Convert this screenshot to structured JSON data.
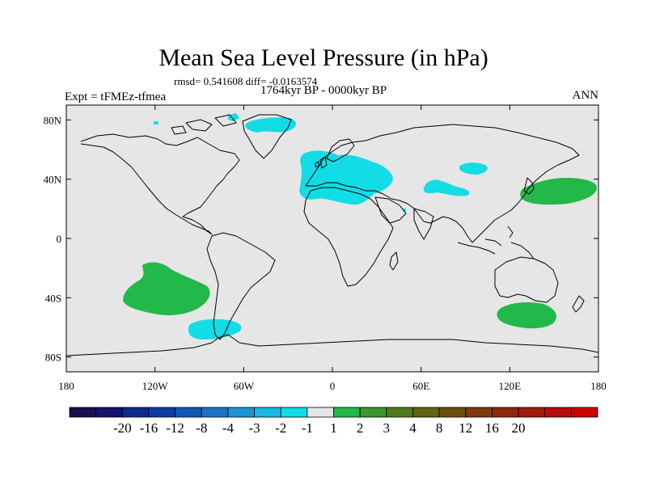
{
  "header": {
    "title": "Mean Sea Level Pressure (in hPa)",
    "stats": "rmsd= 0.541608 diff= -0.0163574",
    "period": "1764kyr BP - 0000kyr BP",
    "experiment": "Expt = tFMEz-tfmea",
    "season": "ANN"
  },
  "map": {
    "lon_range": [
      -180,
      180
    ],
    "lat_range": [
      -90,
      90
    ],
    "x_ticks": [
      {
        "lon": -180,
        "label": "180"
      },
      {
        "lon": -120,
        "label": "120W"
      },
      {
        "lon": -60,
        "label": "60W"
      },
      {
        "lon": 0,
        "label": "0"
      },
      {
        "lon": 60,
        "label": "60E"
      },
      {
        "lon": 120,
        "label": "120E"
      },
      {
        "lon": 180,
        "label": "180"
      }
    ],
    "y_ticks": [
      {
        "lat": 80,
        "label": "80N"
      },
      {
        "lat": 40,
        "label": "40N"
      },
      {
        "lat": 0,
        "label": "0"
      },
      {
        "lat": -40,
        "label": "40S"
      },
      {
        "lat": -80,
        "label": "80S"
      }
    ],
    "ocean_color": "#e6e6e6",
    "anomaly_regions": [
      {
        "name": "greenland-anomaly",
        "class": "-2 to -1"
      },
      {
        "name": "europe-mediterranean-anomaly",
        "class": "-2 to -1"
      },
      {
        "name": "central-asia-anomaly",
        "class": "-2 to -1"
      },
      {
        "name": "mongolia-anomaly",
        "class": "-2 to -1"
      },
      {
        "name": "south-pacific-anomaly",
        "class": "1 to 2"
      },
      {
        "name": "southern-ocean-pacific-anomaly",
        "class": "-2 to -1"
      },
      {
        "name": "north-pacific-anomaly",
        "class": "1 to 2"
      },
      {
        "name": "south-indian-ocean-anomaly",
        "class": "1 to 2"
      }
    ]
  },
  "colorbar": {
    "colors": [
      "#1b0f4f",
      "#12136e",
      "#0d2a8c",
      "#0c3fa3",
      "#1358b4",
      "#1e73c4",
      "#1e93d2",
      "#1ab7e0",
      "#12dce6",
      "#e6e6e6",
      "#22b84a",
      "#3d962e",
      "#4f7a1e",
      "#5f6412",
      "#6c4e0d",
      "#7d3a0d",
      "#8e280c",
      "#a01a0e",
      "#b60d0e",
      "#cc0000"
    ],
    "labels": [
      "-20",
      "-16",
      "-12",
      "-8",
      "-4",
      "-3",
      "-2",
      "-1",
      "1",
      "2",
      "3",
      "4",
      "8",
      "12",
      "16",
      "20"
    ]
  }
}
